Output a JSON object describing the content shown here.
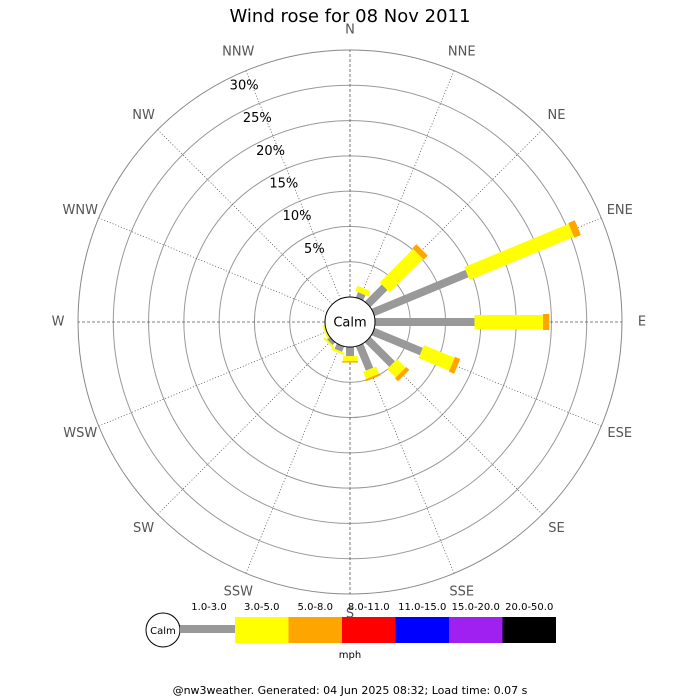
{
  "chart_data": {
    "type": "wind_rose",
    "title": "Wind rose for 08 Nov 2011",
    "directions": [
      "N",
      "NNE",
      "NE",
      "ENE",
      "E",
      "ESE",
      "SE",
      "SSE",
      "S",
      "SSW",
      "SW",
      "WSW",
      "W",
      "WNW",
      "NW",
      "NNW"
    ],
    "center_label": "Calm",
    "rlim": [
      0,
      35
    ],
    "rticks": [
      {
        "value": 5,
        "label": "5%"
      },
      {
        "value": 10,
        "label": "10%"
      },
      {
        "value": 15,
        "label": "15%"
      },
      {
        "value": 20,
        "label": "20%"
      },
      {
        "value": 25,
        "label": "25%"
      },
      {
        "value": 30,
        "label": "30%"
      }
    ],
    "units": "mph",
    "series": [
      {
        "name": "1.0-3.0",
        "color": "#999999",
        "values": [
          0,
          0.8,
          3.4,
          14.4,
          14.1,
          7.4,
          4.9,
          3.7,
          1.3,
          0.8,
          0.5,
          0,
          0,
          0,
          0,
          0
        ]
      },
      {
        "name": "3.0-5.0",
        "color": "#ffff00",
        "values": [
          0,
          0.8,
          6.7,
          16,
          9.7,
          4.7,
          1.7,
          1.1,
          0.7,
          0.3,
          0.3,
          0.3,
          0,
          0,
          0,
          0
        ]
      },
      {
        "name": "5.0-8.0",
        "color": "#ffa500",
        "values": [
          0,
          0,
          0.8,
          1.0,
          0.9,
          0.8,
          0.6,
          0.3,
          0.2,
          0,
          0,
          0,
          0,
          0,
          0,
          0
        ]
      },
      {
        "name": "8.0-11.0",
        "color": "#ff0000",
        "values": [
          0,
          0,
          0,
          0,
          0,
          0,
          0,
          0,
          0,
          0,
          0,
          0,
          0,
          0,
          0,
          0
        ]
      },
      {
        "name": "11.0-15.0",
        "color": "#0000ff",
        "values": [
          0,
          0,
          0,
          0,
          0,
          0,
          0,
          0,
          0,
          0,
          0,
          0,
          0,
          0,
          0,
          0
        ]
      },
      {
        "name": "15.0-20.0",
        "color": "#a020f0",
        "values": [
          0,
          0,
          0,
          0,
          0,
          0,
          0,
          0,
          0,
          0,
          0,
          0,
          0,
          0,
          0,
          0
        ]
      },
      {
        "name": "20.0-50.0",
        "color": "#000000",
        "values": [
          0,
          0,
          0,
          0,
          0,
          0,
          0,
          0,
          0,
          0,
          0,
          0,
          0,
          0,
          0,
          0
        ]
      }
    ],
    "footer": "@nw3weather. Generated: 04 Jun 2025 08:32; Load time: 0.07 s"
  }
}
